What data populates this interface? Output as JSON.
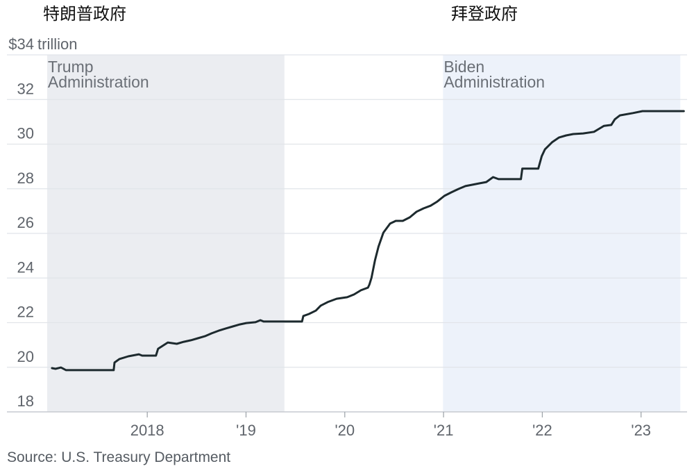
{
  "header": {
    "left_label": "特朗普政府",
    "right_label": "拜登政府"
  },
  "chart_data": {
    "type": "line",
    "xlim": [
      "2016-07-31",
      "2023-06-20"
    ],
    "ylim": [
      18,
      34
    ],
    "yticks": [
      18,
      20,
      22,
      24,
      26,
      28,
      30,
      32,
      34
    ],
    "ytick_labels": [
      "18",
      "20",
      "22",
      "24",
      "26",
      "28",
      "30",
      "32",
      "$34"
    ],
    "y_unit": "trillion",
    "xticks": [
      "2018-01-01",
      "2019-01-01",
      "2020-01-01",
      "2021-01-01",
      "2022-01-01",
      "2023-01-01"
    ],
    "xtick_labels": [
      "2018",
      "'19",
      "'20",
      "'21",
      "'22",
      "'23"
    ],
    "grid": true,
    "bands": [
      {
        "label_lines": [
          "Trump",
          "Administration"
        ],
        "start": "2016-12-27",
        "end": "2019-05-23",
        "color": "#ebedf1"
      },
      {
        "label_lines": [
          "Biden",
          "Administration"
        ],
        "start": "2020-12-30",
        "end": "2023-05-26",
        "color": "#edf2fa"
      }
    ],
    "series": [
      {
        "color": "#1d2a2e",
        "x": [
          "2017-01-14",
          "2017-01-27",
          "2017-02-16",
          "2017-03-07",
          "2017-08-30",
          "2017-09-02",
          "2017-09-20",
          "2017-10-23",
          "2017-12-01",
          "2017-12-13",
          "2018-02-02",
          "2018-02-10",
          "2018-03-18",
          "2018-04-20",
          "2018-05-16",
          "2018-06-11",
          "2018-07-07",
          "2018-08-02",
          "2018-08-27",
          "2018-09-22",
          "2018-10-18",
          "2018-11-13",
          "2018-12-09",
          "2019-01-02",
          "2019-02-05",
          "2019-02-23",
          "2019-03-07",
          "2019-07-27",
          "2019-08-01",
          "2019-08-22",
          "2019-09-16",
          "2019-10-04",
          "2019-10-30",
          "2019-12-02",
          "2020-01-10",
          "2020-02-04",
          "2020-03-01",
          "2020-03-27",
          "2020-04-01",
          "2020-04-09",
          "2020-04-22",
          "2020-05-05",
          "2020-05-23",
          "2020-06-17",
          "2020-07-08",
          "2020-08-03",
          "2020-08-29",
          "2020-09-23",
          "2020-10-19",
          "2020-11-14",
          "2020-12-09",
          "2021-01-04",
          "2021-01-30",
          "2021-02-25",
          "2021-03-23",
          "2021-04-17",
          "2021-05-13",
          "2021-06-08",
          "2021-07-03",
          "2021-07-23",
          "2021-10-14",
          "2021-10-19",
          "2021-12-17",
          "2021-12-30",
          "2022-01-11",
          "2022-02-06",
          "2022-03-04",
          "2022-03-30",
          "2022-04-25",
          "2022-06-01",
          "2022-07-11",
          "2022-08-05",
          "2022-08-17",
          "2022-09-13",
          "2022-09-26",
          "2022-10-15",
          "2022-12-02",
          "2023-01-06",
          "2023-06-08"
        ],
        "y": [
          19.96,
          19.93,
          19.99,
          19.87,
          19.87,
          20.21,
          20.37,
          20.49,
          20.58,
          20.52,
          20.52,
          20.83,
          21.11,
          21.05,
          21.14,
          21.21,
          21.3,
          21.39,
          21.52,
          21.64,
          21.74,
          21.83,
          21.92,
          21.98,
          22.02,
          22.11,
          22.05,
          22.05,
          22.3,
          22.39,
          22.54,
          22.76,
          22.92,
          23.07,
          23.14,
          23.26,
          23.45,
          23.57,
          23.7,
          24.01,
          24.79,
          25.41,
          26.03,
          26.44,
          26.56,
          26.56,
          26.72,
          26.97,
          27.12,
          27.24,
          27.43,
          27.68,
          27.84,
          27.99,
          28.12,
          28.18,
          28.24,
          28.3,
          28.52,
          28.43,
          28.43,
          28.9,
          28.9,
          29.46,
          29.77,
          30.08,
          30.3,
          30.39,
          30.45,
          30.48,
          30.55,
          30.73,
          30.82,
          30.86,
          31.11,
          31.29,
          31.39,
          31.48,
          31.48
        ]
      }
    ]
  },
  "source": "Source: U.S. Treasury Department"
}
